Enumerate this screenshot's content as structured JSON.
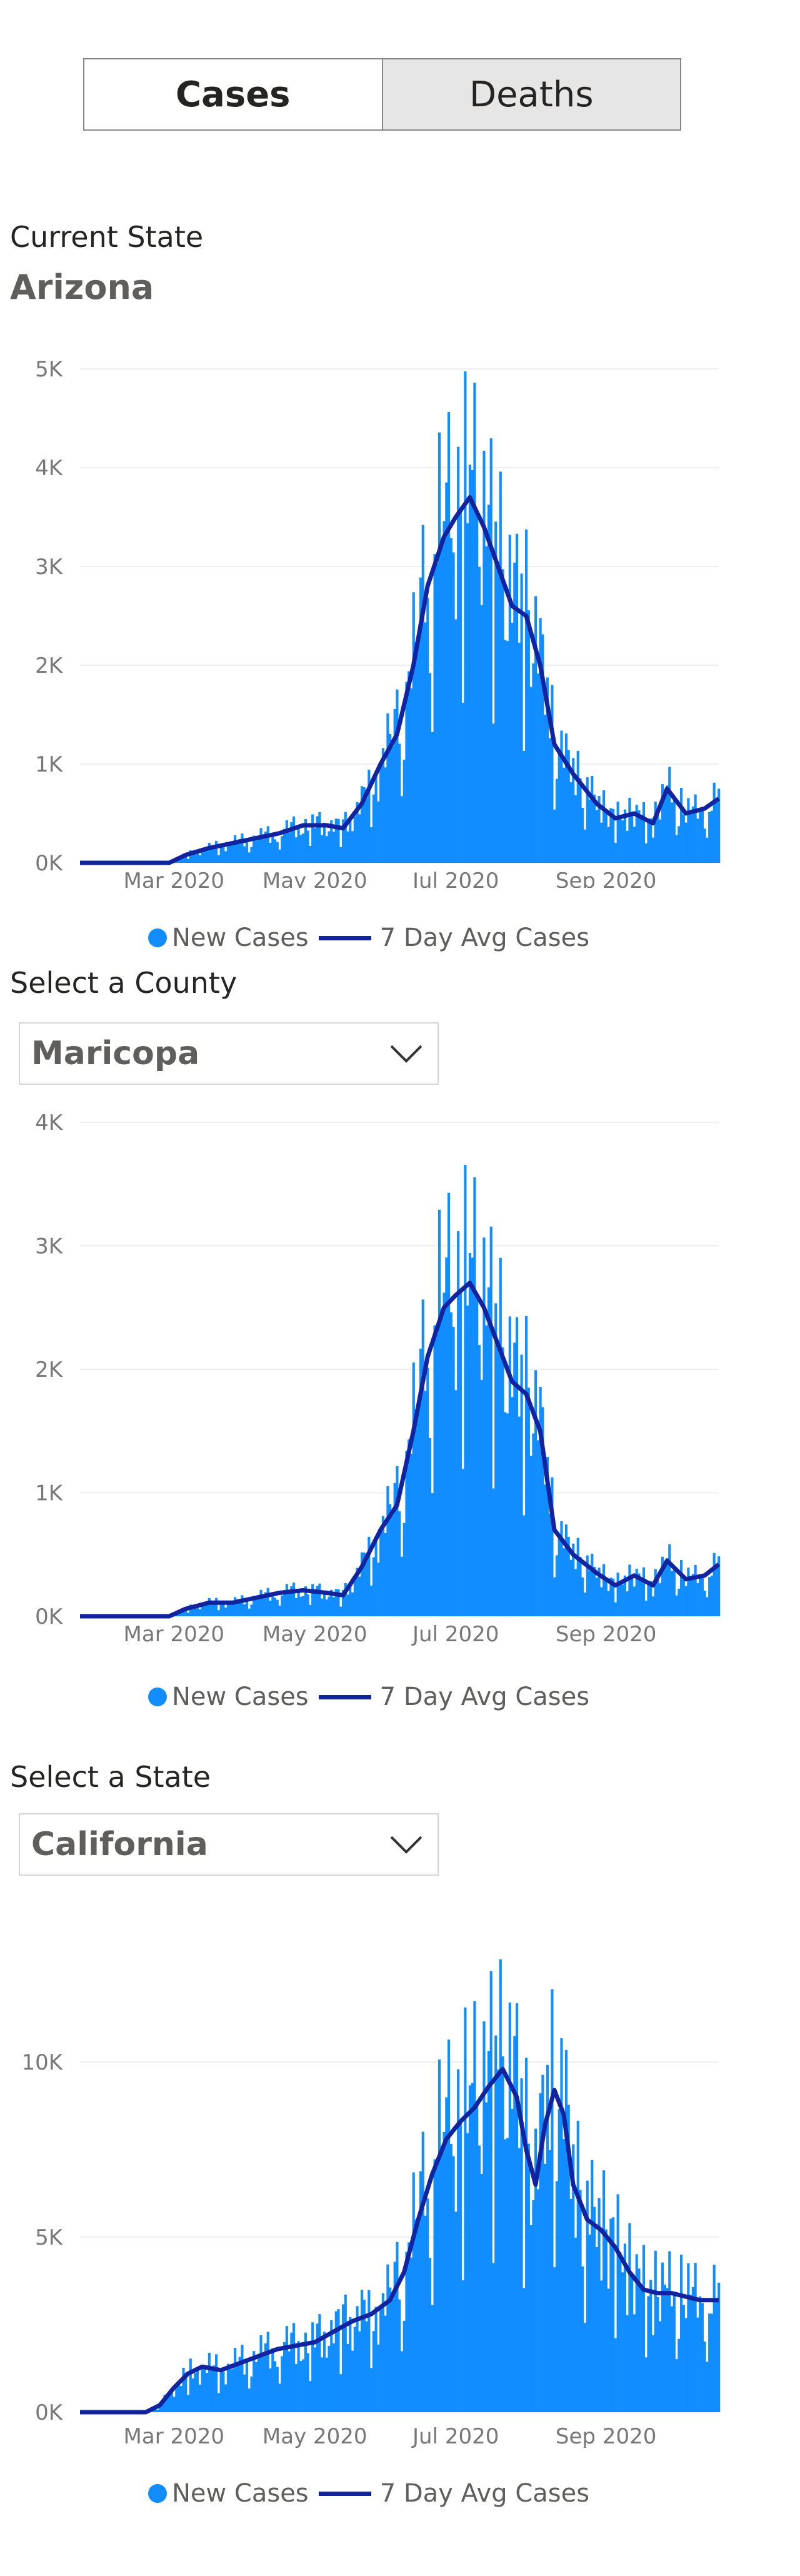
{
  "toggle": {
    "cases_label": "Cases",
    "deaths_label": "Deaths"
  },
  "section1": {
    "label": "Current State",
    "state": "Arizona"
  },
  "section2": {
    "label": "Select a County",
    "selected": "Maricopa"
  },
  "section3": {
    "label": "Select a State",
    "selected": "California"
  },
  "legend": {
    "bars": "New Cases",
    "line": "7 Day Avg Cases"
  },
  "colors": {
    "bars": "#118dff",
    "line": "#12239e",
    "grid": "#eeeeee"
  },
  "chart_data": [
    {
      "type": "bar",
      "title": "",
      "x_tick_labels": [
        "Mar 2020",
        "May 2020",
        "Jul 2020",
        "Sep 2020"
      ],
      "y_tick_labels": [
        "0K",
        "1K",
        "2K",
        "3K",
        "4K",
        "5K"
      ],
      "ylim": [
        0,
        5000
      ],
      "series": [
        {
          "name": "New Cases",
          "type": "bar",
          "keypoints": [
            [
              0,
              0
            ],
            [
              38,
              0
            ],
            [
              45,
              80
            ],
            [
              55,
              150
            ],
            [
              65,
              200
            ],
            [
              75,
              250
            ],
            [
              85,
              300
            ],
            [
              95,
              380
            ],
            [
              105,
              380
            ],
            [
              112,
              350
            ],
            [
              120,
              600
            ],
            [
              128,
              1000
            ],
            [
              135,
              1300
            ],
            [
              142,
              2000
            ],
            [
              148,
              2800
            ],
            [
              155,
              3300
            ],
            [
              160,
              3500
            ],
            [
              166,
              3700
            ],
            [
              172,
              3400
            ],
            [
              178,
              3000
            ],
            [
              184,
              2600
            ],
            [
              190,
              2500
            ],
            [
              196,
              2000
            ],
            [
              202,
              1200
            ],
            [
              210,
              900
            ],
            [
              220,
              600
            ],
            [
              228,
              450
            ],
            [
              236,
              500
            ],
            [
              244,
              400
            ],
            [
              250,
              750
            ],
            [
              258,
              500
            ],
            [
              266,
              550
            ],
            [
              272,
              650
            ]
          ]
        },
        {
          "name": "7 Day Avg Cases",
          "type": "line",
          "keypoints": [
            [
              0,
              0
            ],
            [
              38,
              0
            ],
            [
              45,
              80
            ],
            [
              55,
              150
            ],
            [
              65,
              200
            ],
            [
              75,
              250
            ],
            [
              85,
              300
            ],
            [
              95,
              380
            ],
            [
              105,
              380
            ],
            [
              112,
              350
            ],
            [
              120,
              600
            ],
            [
              128,
              1000
            ],
            [
              135,
              1300
            ],
            [
              142,
              2000
            ],
            [
              148,
              2800
            ],
            [
              155,
              3300
            ],
            [
              160,
              3500
            ],
            [
              166,
              3700
            ],
            [
              172,
              3400
            ],
            [
              178,
              3000
            ],
            [
              184,
              2600
            ],
            [
              190,
              2500
            ],
            [
              196,
              2000
            ],
            [
              202,
              1200
            ],
            [
              210,
              900
            ],
            [
              220,
              600
            ],
            [
              228,
              450
            ],
            [
              236,
              500
            ],
            [
              244,
              400
            ],
            [
              250,
              750
            ],
            [
              258,
              500
            ],
            [
              266,
              550
            ],
            [
              272,
              650
            ]
          ]
        }
      ]
    },
    {
      "type": "bar",
      "title": "",
      "x_tick_labels": [
        "Mar 2020",
        "May 2020",
        "Jul 2020",
        "Sep 2020"
      ],
      "y_tick_labels": [
        "0K",
        "1K",
        "2K",
        "3K",
        "4K"
      ],
      "ylim": [
        0,
        4000
      ],
      "series": [
        {
          "name": "New Cases",
          "type": "bar",
          "keypoints": [
            [
              0,
              0
            ],
            [
              38,
              0
            ],
            [
              45,
              60
            ],
            [
              55,
              110
            ],
            [
              65,
              110
            ],
            [
              75,
              150
            ],
            [
              85,
              190
            ],
            [
              95,
              210
            ],
            [
              105,
              190
            ],
            [
              112,
              170
            ],
            [
              120,
              400
            ],
            [
              128,
              700
            ],
            [
              135,
              900
            ],
            [
              142,
              1500
            ],
            [
              148,
              2100
            ],
            [
              155,
              2500
            ],
            [
              160,
              2600
            ],
            [
              166,
              2700
            ],
            [
              172,
              2500
            ],
            [
              178,
              2200
            ],
            [
              184,
              1900
            ],
            [
              190,
              1800
            ],
            [
              196,
              1500
            ],
            [
              202,
              700
            ],
            [
              210,
              500
            ],
            [
              220,
              350
            ],
            [
              228,
              250
            ],
            [
              236,
              330
            ],
            [
              244,
              250
            ],
            [
              250,
              450
            ],
            [
              258,
              300
            ],
            [
              266,
              330
            ],
            [
              272,
              420
            ]
          ]
        },
        {
          "name": "7 Day Avg Cases",
          "type": "line",
          "keypoints": [
            [
              0,
              0
            ],
            [
              38,
              0
            ],
            [
              45,
              60
            ],
            [
              55,
              110
            ],
            [
              65,
              110
            ],
            [
              75,
              150
            ],
            [
              85,
              190
            ],
            [
              95,
              210
            ],
            [
              105,
              190
            ],
            [
              112,
              170
            ],
            [
              120,
              400
            ],
            [
              128,
              700
            ],
            [
              135,
              900
            ],
            [
              142,
              1500
            ],
            [
              148,
              2100
            ],
            [
              155,
              2500
            ],
            [
              160,
              2600
            ],
            [
              166,
              2700
            ],
            [
              172,
              2500
            ],
            [
              178,
              2200
            ],
            [
              184,
              1900
            ],
            [
              190,
              1800
            ],
            [
              196,
              1500
            ],
            [
              202,
              700
            ],
            [
              210,
              500
            ],
            [
              220,
              350
            ],
            [
              228,
              250
            ],
            [
              236,
              330
            ],
            [
              244,
              250
            ],
            [
              250,
              450
            ],
            [
              258,
              300
            ],
            [
              266,
              330
            ],
            [
              272,
              420
            ]
          ]
        }
      ]
    },
    {
      "type": "bar",
      "title": "",
      "x_tick_labels": [
        "Mar 2020",
        "May 2020",
        "Jul 2020",
        "Sep 2020"
      ],
      "y_tick_labels": [
        "0K",
        "5K",
        "10K"
      ],
      "ylim": [
        0,
        13000
      ],
      "series": [
        {
          "name": "New Cases",
          "type": "bar",
          "keypoints": [
            [
              0,
              0
            ],
            [
              28,
              0
            ],
            [
              34,
              200
            ],
            [
              40,
              700
            ],
            [
              46,
              1100
            ],
            [
              52,
              1300
            ],
            [
              60,
              1200
            ],
            [
              68,
              1400
            ],
            [
              76,
              1600
            ],
            [
              84,
              1800
            ],
            [
              92,
              1900
            ],
            [
              100,
              2000
            ],
            [
              108,
              2300
            ],
            [
              116,
              2600
            ],
            [
              124,
              2800
            ],
            [
              132,
              3200
            ],
            [
              138,
              4000
            ],
            [
              144,
              5500
            ],
            [
              150,
              6800
            ],
            [
              156,
              7800
            ],
            [
              162,
              8300
            ],
            [
              168,
              8700
            ],
            [
              174,
              9300
            ],
            [
              180,
              9800
            ],
            [
              186,
              9000
            ],
            [
              190,
              7500
            ],
            [
              194,
              6500
            ],
            [
              198,
              8200
            ],
            [
              202,
              9200
            ],
            [
              206,
              8500
            ],
            [
              210,
              6500
            ],
            [
              216,
              5500
            ],
            [
              222,
              5200
            ],
            [
              228,
              4700
            ],
            [
              234,
              4000
            ],
            [
              240,
              3500
            ],
            [
              246,
              3400
            ],
            [
              252,
              3400
            ],
            [
              258,
              3300
            ],
            [
              264,
              3200
            ],
            [
              272,
              3200
            ]
          ]
        },
        {
          "name": "7 Day Avg Cases",
          "type": "line",
          "keypoints": [
            [
              0,
              0
            ],
            [
              28,
              0
            ],
            [
              34,
              200
            ],
            [
              40,
              700
            ],
            [
              46,
              1100
            ],
            [
              52,
              1300
            ],
            [
              60,
              1200
            ],
            [
              68,
              1400
            ],
            [
              76,
              1600
            ],
            [
              84,
              1800
            ],
            [
              92,
              1900
            ],
            [
              100,
              2000
            ],
            [
              108,
              2300
            ],
            [
              116,
              2600
            ],
            [
              124,
              2800
            ],
            [
              132,
              3200
            ],
            [
              138,
              4000
            ],
            [
              144,
              5500
            ],
            [
              150,
              6800
            ],
            [
              156,
              7800
            ],
            [
              162,
              8300
            ],
            [
              168,
              8700
            ],
            [
              174,
              9300
            ],
            [
              180,
              9800
            ],
            [
              186,
              9000
            ],
            [
              190,
              7500
            ],
            [
              194,
              6500
            ],
            [
              198,
              8200
            ],
            [
              202,
              9200
            ],
            [
              206,
              8500
            ],
            [
              210,
              6500
            ],
            [
              216,
              5500
            ],
            [
              222,
              5200
            ],
            [
              228,
              4700
            ],
            [
              234,
              4000
            ],
            [
              240,
              3500
            ],
            [
              246,
              3400
            ],
            [
              252,
              3400
            ],
            [
              258,
              3300
            ],
            [
              264,
              3200
            ],
            [
              272,
              3200
            ]
          ]
        }
      ]
    }
  ]
}
